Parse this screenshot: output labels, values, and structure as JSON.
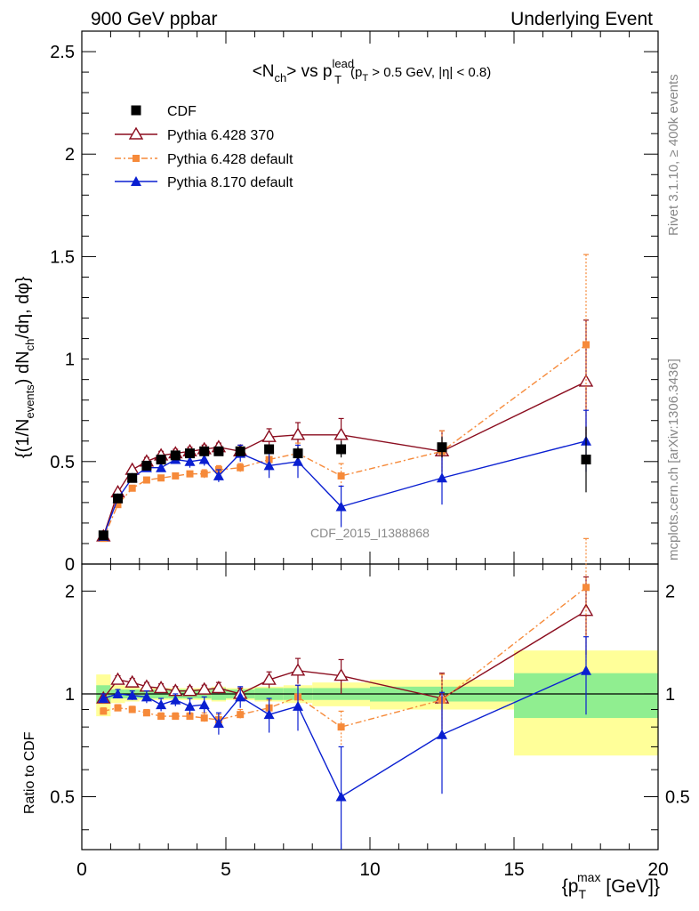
{
  "header": {
    "left": "900 GeV ppbar",
    "right": "Underlying Event"
  },
  "side": {
    "rivet": "Rivet 3.1.10, ≥ 400k events",
    "mcplots": "mcplots.cern.ch [arXiv:1306.3436]"
  },
  "watermark": "CDF_2015_I1388868",
  "title": {
    "main": "<N",
    "sub_ch": "ch",
    "vs": "> vs p",
    "sup_lead": "lead",
    "sub_T": "T",
    "cut_p": "(p",
    "cut_T": "T",
    "cut_rest": " > 0.5 GeV, |η| < 0.8)"
  },
  "ylabel": {
    "a": "{(1/N",
    "a_sub": "events",
    "b": ") dN",
    "b_sub": "ch",
    "c": "/dη, dφ}"
  },
  "ratio_ylabel": "Ratio to CDF",
  "xlabel": {
    "a": "{p",
    "sub": "T",
    "sup": "max",
    "b": " [GeV]}"
  },
  "colors": {
    "cdf": "#000000",
    "p6_370": "#8b0d1f",
    "p6_def": "#f68a3a",
    "p8": "#0a1fd1",
    "band_inner": "#90ee90",
    "band_outer": "#ffff99"
  },
  "chart_data": {
    "type": "scatter",
    "xlim": [
      0,
      20
    ],
    "main": {
      "ylim": [
        0,
        2.6
      ],
      "yticks": [
        0,
        0.5,
        1,
        1.5,
        2,
        2.5
      ],
      "ytick_labels": [
        "0",
        "0.5",
        "1",
        "1.5",
        "2",
        "2.5"
      ]
    },
    "ratio": {
      "ylim": [
        0.35,
        2.4
      ],
      "yticks": [
        0.5,
        1,
        2
      ],
      "ytick_labels": [
        "0.5",
        "1",
        "2"
      ]
    },
    "xticks": [
      0,
      5,
      10,
      15,
      20
    ],
    "xtick_labels": [
      "0",
      "5",
      "10",
      "15",
      "20"
    ],
    "legend": [
      "CDF",
      "Pythia 6.428 370",
      "Pythia 6.428 default",
      "Pythia 8.170 default"
    ],
    "bins": [
      [
        0.5,
        1
      ],
      [
        1,
        1.5
      ],
      [
        1.5,
        2
      ],
      [
        2,
        2.5
      ],
      [
        2.5,
        3
      ],
      [
        3,
        3.5
      ],
      [
        3.5,
        4
      ],
      [
        4,
        4.5
      ],
      [
        4.5,
        5
      ],
      [
        5,
        6
      ],
      [
        6,
        7
      ],
      [
        7,
        8
      ],
      [
        8,
        10
      ],
      [
        10,
        15
      ],
      [
        15,
        20
      ]
    ],
    "data": {
      "x": [
        0.75,
        1.25,
        1.75,
        2.25,
        2.75,
        3.25,
        3.75,
        4.25,
        4.75,
        5.5,
        6.5,
        7.5,
        9,
        12.5,
        17.5
      ],
      "y": [
        0.14,
        0.32,
        0.42,
        0.48,
        0.51,
        0.53,
        0.54,
        0.55,
        0.55,
        0.55,
        0.56,
        0.54,
        0.56,
        0.57,
        0.51
      ],
      "err_inner": [
        0.01,
        0.01,
        0.01,
        0.01,
        0.01,
        0.01,
        0.01,
        0.01,
        0.01,
        0.01,
        0.02,
        0.02,
        0.02,
        0.03,
        0.06
      ],
      "err_outer": [
        0.02,
        0.01,
        0.01,
        0.01,
        0.01,
        0.01,
        0.01,
        0.01,
        0.02,
        0.02,
        0.02,
        0.03,
        0.04,
        0.05,
        0.16
      ]
    },
    "series": [
      {
        "name": "Pythia 6.428 370",
        "y": [
          0.135,
          0.35,
          0.46,
          0.5,
          0.53,
          0.54,
          0.55,
          0.56,
          0.57,
          0.55,
          0.62,
          0.63,
          0.63,
          0.55,
          0.89
        ],
        "err": [
          0.005,
          0.01,
          0.01,
          0.02,
          0.02,
          0.02,
          0.02,
          0.02,
          0.02,
          0.03,
          0.04,
          0.06,
          0.08,
          0.1,
          0.3
        ]
      },
      {
        "name": "Pythia 6.428 default",
        "y": [
          0.125,
          0.29,
          0.37,
          0.41,
          0.42,
          0.43,
          0.44,
          0.44,
          0.46,
          0.47,
          0.51,
          0.54,
          0.43,
          0.55,
          1.07
        ],
        "err": [
          0.005,
          0.01,
          0.01,
          0.01,
          0.01,
          0.01,
          0.01,
          0.02,
          0.02,
          0.02,
          0.04,
          0.05,
          0.06,
          0.1,
          0.44
        ]
      },
      {
        "name": "Pythia 8.170 default",
        "y": [
          0.135,
          0.32,
          0.42,
          0.47,
          0.47,
          0.51,
          0.5,
          0.51,
          0.43,
          0.54,
          0.48,
          0.5,
          0.28,
          0.42,
          0.6
        ],
        "err": [
          0.005,
          0.01,
          0.01,
          0.02,
          0.02,
          0.02,
          0.03,
          0.03,
          0.03,
          0.04,
          0.06,
          0.08,
          0.1,
          0.13,
          0.15
        ]
      }
    ],
    "ratio_series": [
      {
        "name": "Pythia 6.428 370",
        "y": [
          0.97,
          1.1,
          1.08,
          1.05,
          1.04,
          1.02,
          1.02,
          1.03,
          1.04,
          1.0,
          1.1,
          1.17,
          1.13,
          0.97,
          1.75
        ],
        "err": [
          0.03,
          0.03,
          0.03,
          0.03,
          0.03,
          0.03,
          0.03,
          0.03,
          0.04,
          0.04,
          0.06,
          0.1,
          0.13,
          0.18,
          0.45
        ]
      },
      {
        "name": "Pythia 6.428 default",
        "y": [
          0.89,
          0.91,
          0.9,
          0.88,
          0.86,
          0.86,
          0.86,
          0.85,
          0.84,
          0.87,
          0.91,
          0.98,
          0.8,
          0.96,
          2.05
        ],
        "err": [
          0.02,
          0.02,
          0.02,
          0.02,
          0.02,
          0.02,
          0.02,
          0.03,
          0.03,
          0.03,
          0.05,
          0.08,
          0.09,
          0.18,
          0.8
        ]
      },
      {
        "name": "Pythia 8.170 default",
        "y": [
          0.97,
          1.0,
          0.99,
          0.98,
          0.93,
          0.96,
          0.92,
          0.93,
          0.82,
          0.98,
          0.87,
          0.92,
          0.5,
          0.76,
          1.17
        ],
        "err": [
          0.03,
          0.03,
          0.03,
          0.04,
          0.04,
          0.04,
          0.05,
          0.05,
          0.06,
          0.07,
          0.1,
          0.14,
          0.2,
          0.25,
          0.3
        ]
      }
    ],
    "ratio_band_inner": [
      0.06,
      0.03,
      0.03,
      0.03,
      0.03,
      0.03,
      0.03,
      0.03,
      0.04,
      0.03,
      0.04,
      0.04,
      0.04,
      0.05,
      0.15
    ],
    "ratio_band_outer": [
      0.14,
      0.06,
      0.05,
      0.04,
      0.04,
      0.04,
      0.04,
      0.04,
      0.05,
      0.04,
      0.05,
      0.06,
      0.08,
      0.1,
      0.34
    ]
  }
}
